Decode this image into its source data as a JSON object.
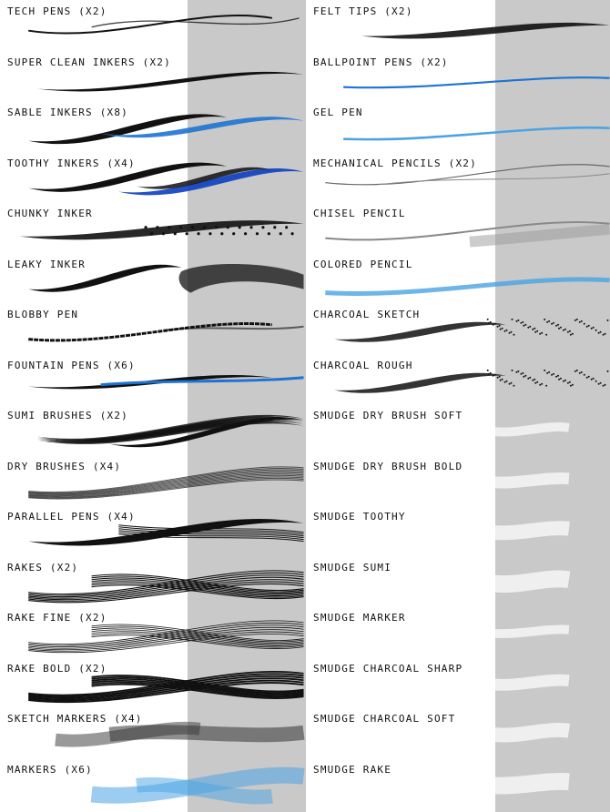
{
  "colors": {
    "ink": "#111111",
    "blue": "#1e73d2",
    "light_blue": "#4aa3e3",
    "deep_blue": "#0b3fc0",
    "grey_panel": "#c9c9c9",
    "smudge": "#ffffff"
  },
  "left_column": [
    {
      "label": "TECH PENS (X2)",
      "style": "tech"
    },
    {
      "label": "SUPER CLEAN INKERS (X2)",
      "style": "clean"
    },
    {
      "label": "SABLE INKERS (X8)",
      "style": "sable"
    },
    {
      "label": "TOOTHY INKERS (X4)",
      "style": "toothy"
    },
    {
      "label": "CHUNKY INKER",
      "style": "chunky"
    },
    {
      "label": "LEAKY INKER",
      "style": "leaky"
    },
    {
      "label": "BLOBBY PEN",
      "style": "blobby"
    },
    {
      "label": "FOUNTAIN PENS (X6)",
      "style": "fountain"
    },
    {
      "label": "SUMI BRUSHES (X2)",
      "style": "sumi"
    },
    {
      "label": "DRY BRUSHES (X4)",
      "style": "dry"
    },
    {
      "label": "PARALLEL PENS (X4)",
      "style": "parallel"
    },
    {
      "label": "RAKES (X2)",
      "style": "rakes"
    },
    {
      "label": "RAKE FINE (X2)",
      "style": "rakefine"
    },
    {
      "label": "RAKE BOLD (X2)",
      "style": "rakebold"
    },
    {
      "label": "SKETCH MARKERS (X4)",
      "style": "sketchmarker"
    },
    {
      "label": "MARKERS (X6)",
      "style": "markers"
    }
  ],
  "right_column": [
    {
      "label": "FELT TIPS (X2)",
      "style": "felt"
    },
    {
      "label": "BALLPOINT PENS (X2)",
      "style": "ballpoint"
    },
    {
      "label": "GEL PEN",
      "style": "gel"
    },
    {
      "label": "MECHANICAL PENCILS (X2)",
      "style": "mech"
    },
    {
      "label": "CHISEL PENCIL",
      "style": "chisel"
    },
    {
      "label": "COLORED PENCIL",
      "style": "colored"
    },
    {
      "label": "CHARCOAL SKETCH",
      "style": "charcoalsketch"
    },
    {
      "label": "CHARCOAL ROUGH",
      "style": "charcoalrough"
    },
    {
      "label": "SMUDGE DRY BRUSH SOFT",
      "style": "smudge"
    },
    {
      "label": "SMUDGE DRY BRUSH BOLD",
      "style": "smudge"
    },
    {
      "label": "SMUDGE TOOTHY",
      "style": "smudge"
    },
    {
      "label": "SMUDGE SUMI",
      "style": "smudge"
    },
    {
      "label": "SMUDGE MARKER",
      "style": "smudge"
    },
    {
      "label": "SMUDGE CHARCOAL SHARP",
      "style": "smudge"
    },
    {
      "label": "SMUDGE CHARCOAL SOFT",
      "style": "smudge"
    },
    {
      "label": "SMUDGE RAKE",
      "style": "smudge"
    }
  ]
}
